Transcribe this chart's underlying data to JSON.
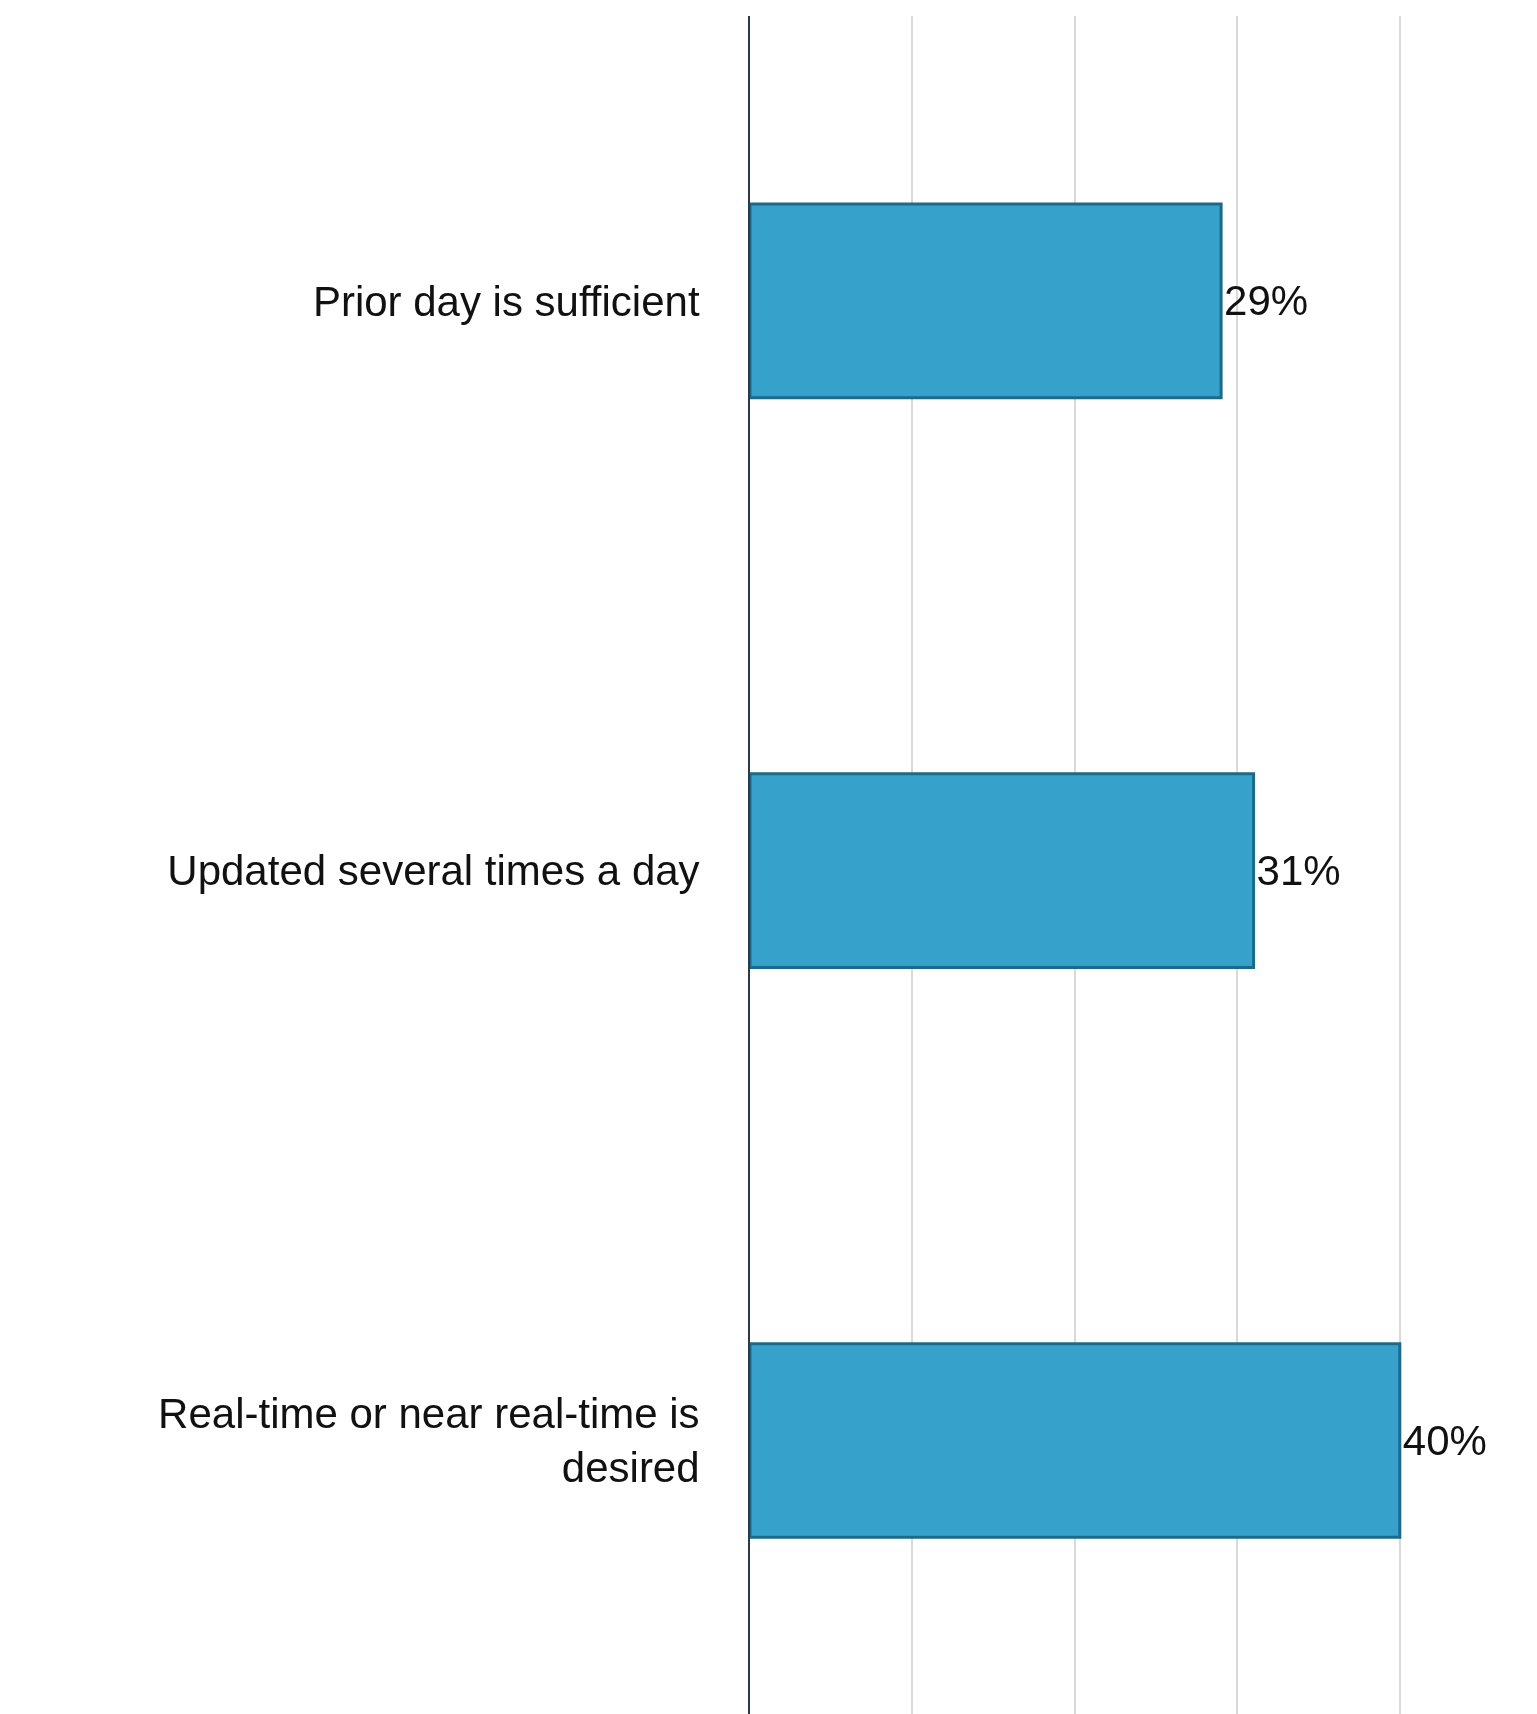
{
  "chart_data": {
    "type": "bar",
    "orientation": "horizontal",
    "categories": [
      "Prior day is sufficient",
      "Updated several times a day",
      "Real-time or near real-time is desired"
    ],
    "values": [
      29,
      31,
      40
    ],
    "value_labels": [
      "29%",
      "31%",
      "40%"
    ],
    "color": "#36a2cb",
    "xticks": [
      {
        "value": 0,
        "label": null
      },
      {
        "value": 10,
        "label": null
      },
      {
        "value": 20,
        "label": null
      },
      {
        "value": 30,
        "label": null
      },
      {
        "value": 40,
        "label": null
      }
    ],
    "grid": "x"
  }
}
